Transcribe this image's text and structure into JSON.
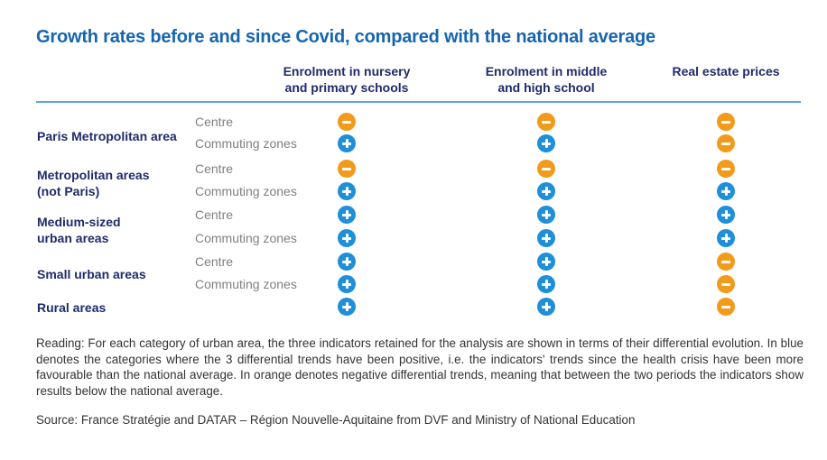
{
  "chart_data": {
    "type": "table",
    "title": "Growth rates before and since Covid, compared with the national average",
    "columns": [
      "Enrolment in nursery\nand primary schools",
      "Enrolment in middle\nand high school",
      "Real estate prices"
    ],
    "legend": {
      "plus_color": "#1e8fd8",
      "minus_color": "#f29a1a"
    },
    "categories": [
      {
        "label": "Paris Metropolitan area",
        "rows": [
          {
            "sub": "Centre",
            "values": [
              "-",
              "-",
              "-"
            ]
          },
          {
            "sub": "Commuting zones",
            "values": [
              "+",
              "+",
              "-"
            ]
          }
        ]
      },
      {
        "label": "Metropolitan areas\n(not Paris)",
        "rows": [
          {
            "sub": "Centre",
            "values": [
              "-",
              "-",
              "-"
            ]
          },
          {
            "sub": "Commuting zones",
            "values": [
              "+",
              "+",
              "+"
            ]
          }
        ]
      },
      {
        "label": "Medium-sized\nurban areas",
        "rows": [
          {
            "sub": "Centre",
            "values": [
              "+",
              "+",
              "+"
            ]
          },
          {
            "sub": "Commuting zones",
            "values": [
              "+",
              "+",
              "+"
            ]
          }
        ]
      },
      {
        "label": "Small urban areas",
        "rows": [
          {
            "sub": "Centre",
            "values": [
              "+",
              "+",
              "-"
            ]
          },
          {
            "sub": "Commuting zones",
            "values": [
              "+",
              "+",
              "-"
            ]
          }
        ]
      },
      {
        "label": "Rural areas",
        "rows": [
          {
            "sub": "",
            "values": [
              "+",
              "+",
              "-"
            ]
          }
        ]
      }
    ]
  },
  "reading": "Reading: For each category of urban area, the three indicators retained for the analysis are shown in terms of their differential evolution. In blue denotes the categories where the 3 differential trends have been positive, i.e. the indicators' trends since the health crisis have been more favourable than the national average. In orange denotes negative differential trends, meaning that between the two periods the indicators show results below the national average.",
  "source": "Source: France Stratégie and DATAR – Région Nouvelle-Aquitaine from DVF and Ministry of National Education"
}
